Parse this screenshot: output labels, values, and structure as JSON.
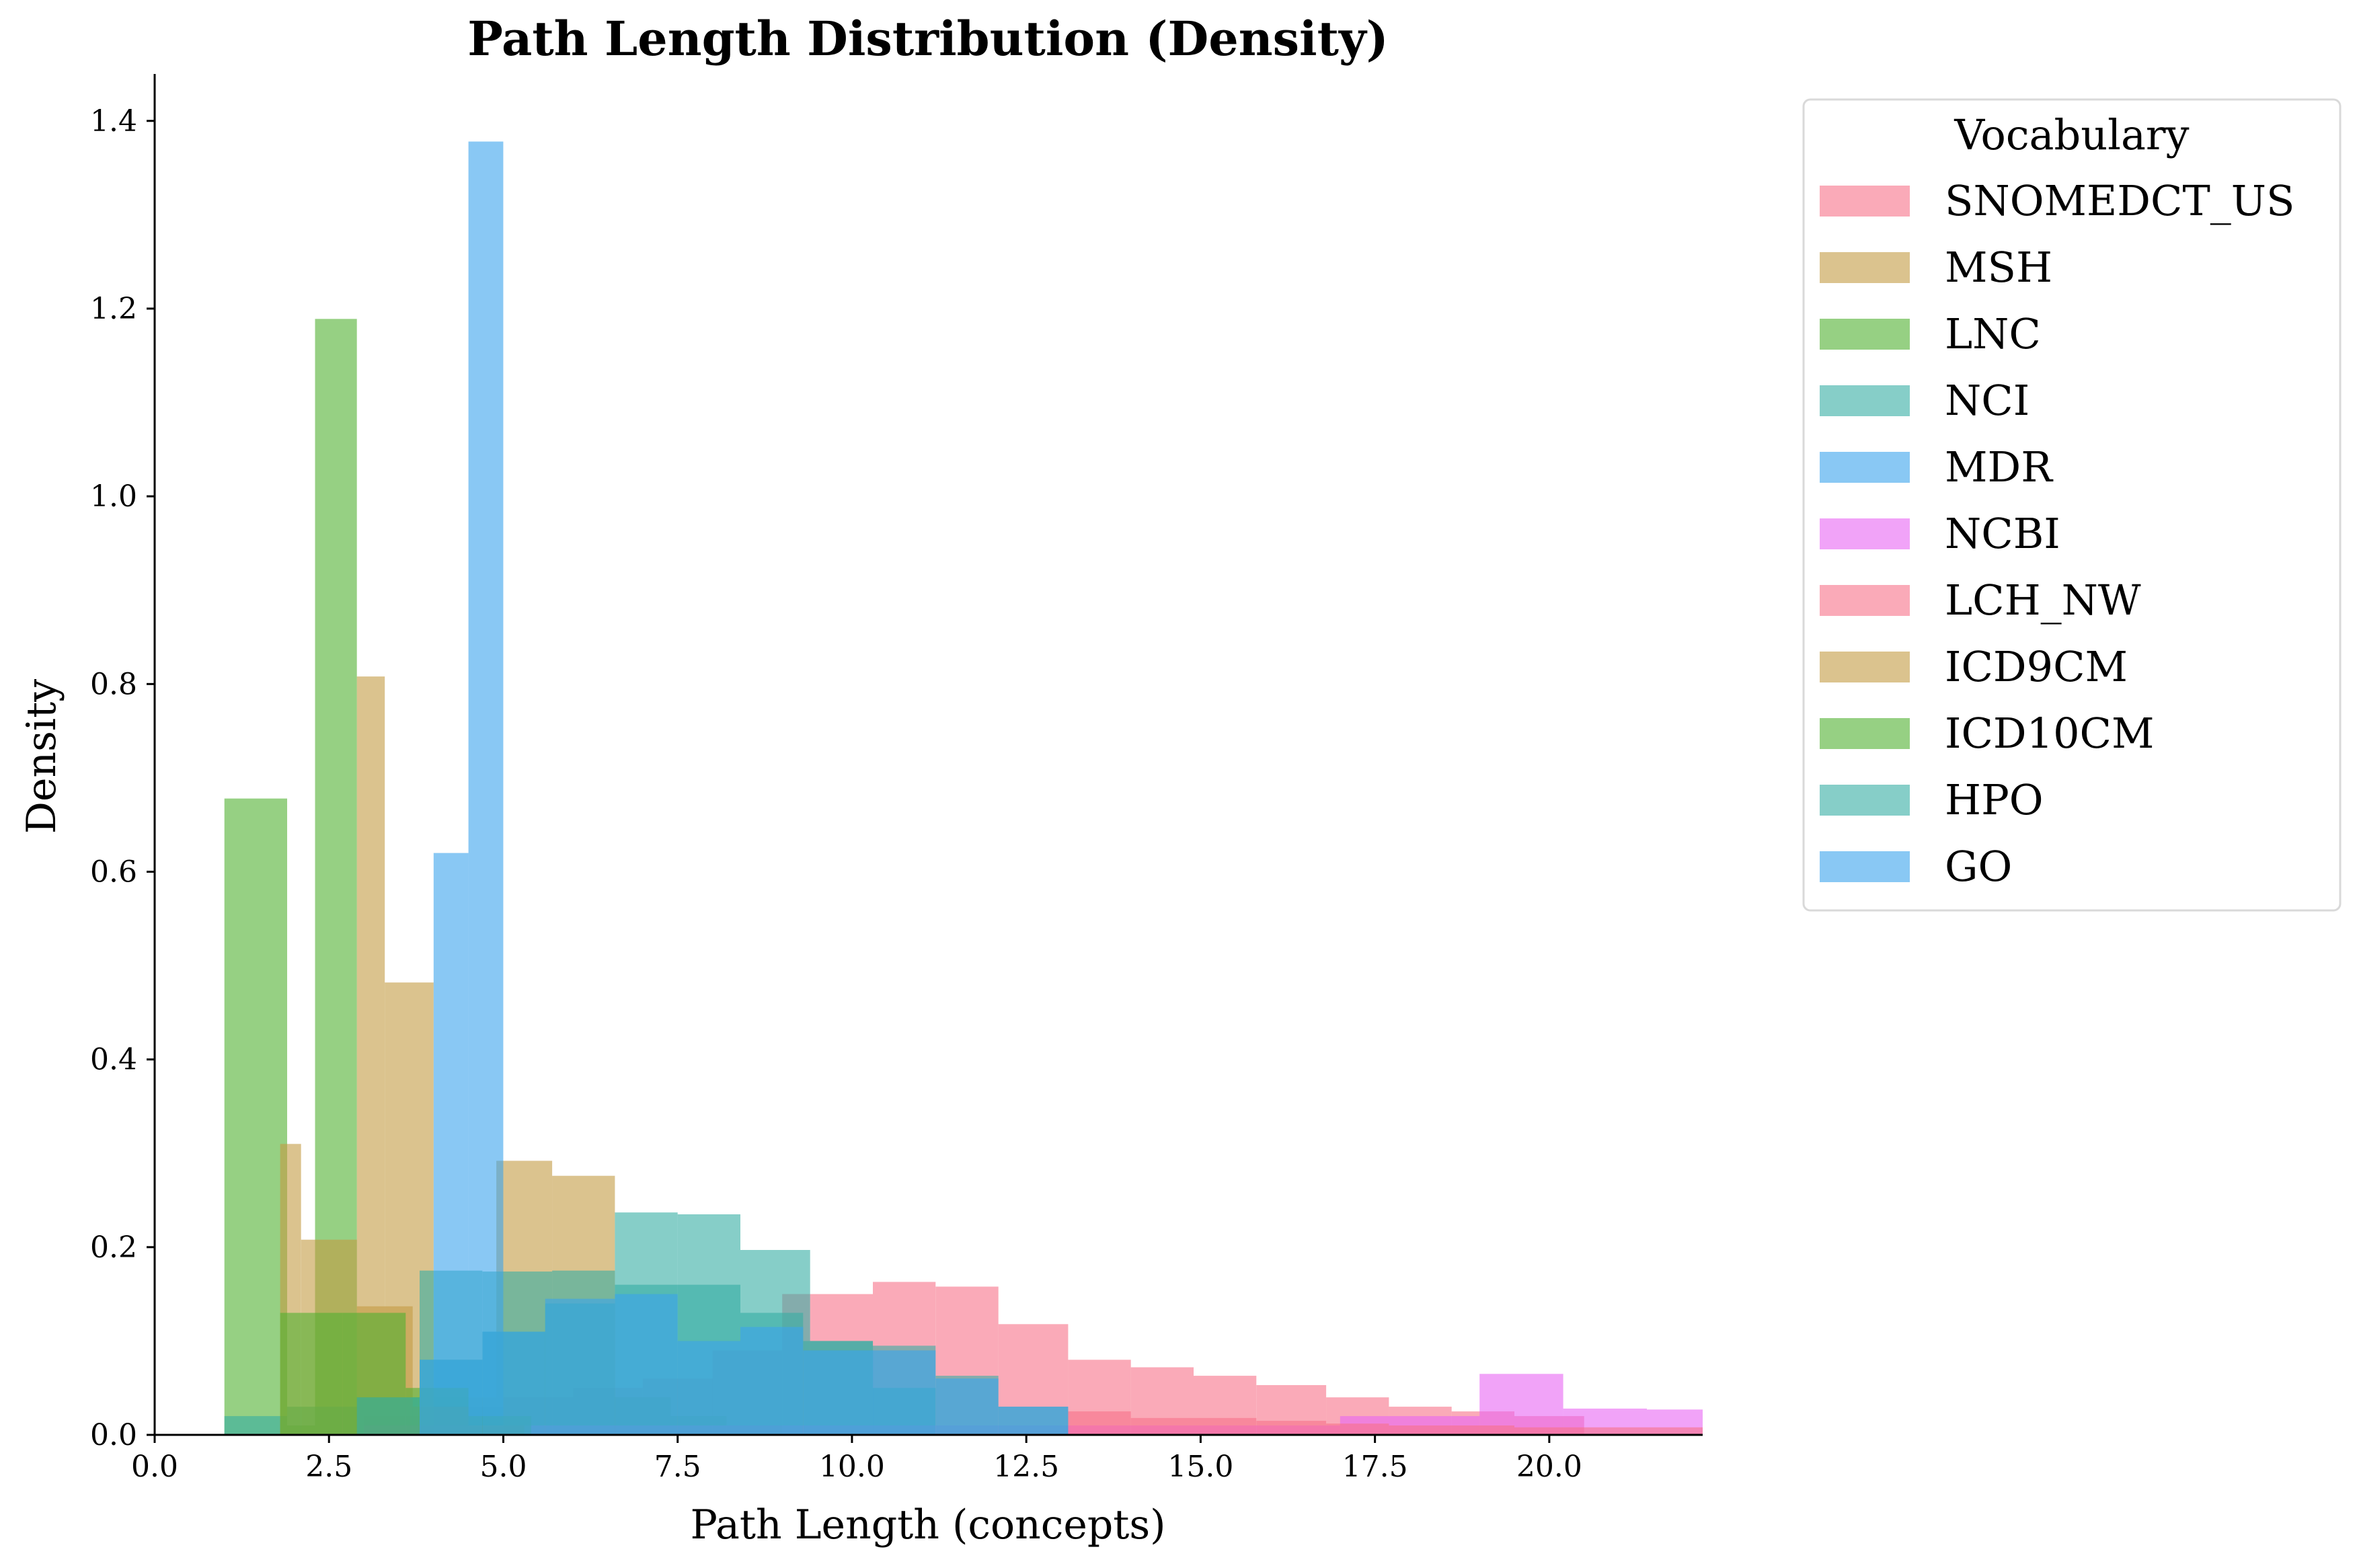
{
  "chart_data": {
    "type": "histogram",
    "title": "Path Length Distribution (Density)",
    "xlabel": "Path Length (concepts)",
    "ylabel": "Density",
    "xlim": [
      0,
      22.2
    ],
    "ylim": [
      0,
      1.45
    ],
    "xticks": [
      0,
      2.5,
      5,
      7.5,
      10,
      12.5,
      15,
      17.5,
      20
    ],
    "xtick_labels": [
      "0.0",
      "2.5",
      "5.0",
      "7.5",
      "10.0",
      "12.5",
      "15.0",
      "17.5",
      "20.0"
    ],
    "yticks": [
      0,
      0.2,
      0.4,
      0.6,
      0.8,
      1.0,
      1.2,
      1.4
    ],
    "ytick_labels": [
      "0.0",
      "0.2",
      "0.4",
      "0.6",
      "0.8",
      "1.0",
      "1.2",
      "1.4"
    ],
    "legend_title": "Vocabulary",
    "legend_position": "outside top-right",
    "series": [
      {
        "name": "SNOMEDCT_US",
        "color": "#f77189",
        "bins": [
          [
            3.0,
            4.0,
            0.02
          ],
          [
            4.0,
            5.0,
            0.03
          ],
          [
            5.0,
            6.0,
            0.04
          ],
          [
            6.0,
            7.0,
            0.05
          ],
          [
            7.0,
            8.0,
            0.06
          ],
          [
            8.0,
            9.0,
            0.09
          ],
          [
            9.0,
            9.4,
            0.15
          ],
          [
            9.4,
            10.3,
            0.15
          ],
          [
            10.3,
            11.2,
            0.163
          ],
          [
            11.2,
            12.1,
            0.158
          ],
          [
            12.1,
            13.1,
            0.118
          ],
          [
            13.1,
            14.0,
            0.08
          ],
          [
            14.0,
            14.9,
            0.072
          ],
          [
            14.9,
            15.8,
            0.063
          ],
          [
            15.8,
            16.8,
            0.053
          ],
          [
            16.8,
            17.7,
            0.04
          ],
          [
            17.7,
            18.6,
            0.03
          ],
          [
            18.6,
            19.5,
            0.025
          ],
          [
            19.5,
            20.5,
            0.02
          ]
        ]
      },
      {
        "name": "MSH",
        "color": "#c39b43",
        "bins": [
          [
            2.9,
            3.3,
            0.808
          ],
          [
            3.3,
            4.0,
            0.482
          ],
          [
            4.0,
            4.9,
            0.04
          ],
          [
            4.9,
            5.7,
            0.292
          ],
          [
            5.7,
            6.6,
            0.276
          ],
          [
            6.6,
            7.4,
            0.04
          ],
          [
            7.4,
            8.2,
            0.02
          ],
          [
            8.2,
            9.0,
            0.01
          ]
        ]
      },
      {
        "name": "LNC",
        "color": "#50b131",
        "bins": [
          [
            1.0,
            1.9,
            0.678
          ],
          [
            1.9,
            2.3,
            0.01
          ],
          [
            2.3,
            2.9,
            1.189
          ]
        ]
      },
      {
        "name": "NCI",
        "color": "#36ada4",
        "bins": [
          [
            1.0,
            1.9,
            0.02
          ],
          [
            1.9,
            2.9,
            0.03
          ],
          [
            2.9,
            3.8,
            0.04
          ],
          [
            3.8,
            4.7,
            0.175
          ],
          [
            4.7,
            5.7,
            0.174
          ],
          [
            5.7,
            6.6,
            0.175
          ],
          [
            6.6,
            7.5,
            0.237
          ],
          [
            7.5,
            8.4,
            0.235
          ],
          [
            8.4,
            9.4,
            0.197
          ],
          [
            9.4,
            10.3,
            0.1
          ],
          [
            10.3,
            11.2,
            0.05
          ]
        ]
      },
      {
        "name": "MDR",
        "color": "#3ba3ec",
        "bins": [
          [
            4.0,
            4.5,
            0.62
          ],
          [
            4.5,
            5.0,
            1.378
          ]
        ]
      },
      {
        "name": "NCBI",
        "color": "#e866f4",
        "bins": [
          [
            3.0,
            5.0,
            0.01
          ],
          [
            5.0,
            8.0,
            0.01
          ],
          [
            8.0,
            11.0,
            0.01
          ],
          [
            11.0,
            14.0,
            0.01
          ],
          [
            14.0,
            17.0,
            0.01
          ],
          [
            17.0,
            19.0,
            0.02
          ],
          [
            19.0,
            20.2,
            0.065
          ],
          [
            20.2,
            21.4,
            0.028
          ],
          [
            21.4,
            22.2,
            0.027
          ]
        ]
      },
      {
        "name": "LCH_NW",
        "color": "#f77189",
        "bins": [
          [
            13.1,
            14.0,
            0.025
          ],
          [
            14.0,
            15.8,
            0.018
          ],
          [
            15.8,
            16.8,
            0.015
          ],
          [
            16.8,
            17.7,
            0.012
          ],
          [
            17.7,
            19.5,
            0.01
          ],
          [
            19.5,
            22.2,
            0.008
          ]
        ]
      },
      {
        "name": "ICD9CM",
        "color": "#c39b43",
        "bins": [
          [
            1.8,
            2.1,
            0.31
          ],
          [
            2.1,
            2.9,
            0.208
          ],
          [
            2.9,
            3.7,
            0.137
          ],
          [
            3.7,
            4.5,
            0.03
          ],
          [
            4.5,
            5.3,
            0.01
          ]
        ]
      },
      {
        "name": "ICD10CM",
        "color": "#50b131",
        "bins": [
          [
            1.8,
            2.7,
            0.13
          ],
          [
            2.7,
            3.6,
            0.13
          ],
          [
            3.6,
            4.5,
            0.05
          ],
          [
            4.5,
            5.4,
            0.02
          ]
        ]
      },
      {
        "name": "HPO",
        "color": "#36ada4",
        "bins": [
          [
            2.9,
            3.8,
            0.04
          ],
          [
            3.8,
            4.7,
            0.08
          ],
          [
            4.7,
            5.6,
            0.11
          ],
          [
            5.6,
            6.6,
            0.14
          ],
          [
            6.6,
            7.5,
            0.16
          ],
          [
            7.5,
            8.4,
            0.16
          ],
          [
            8.4,
            9.3,
            0.13
          ],
          [
            9.3,
            10.3,
            0.1
          ],
          [
            10.3,
            11.2,
            0.095
          ],
          [
            11.2,
            12.1,
            0.063
          ],
          [
            12.1,
            13.1,
            0.03
          ]
        ]
      },
      {
        "name": "GO",
        "color": "#3ba3ec",
        "bins": [
          [
            3.8,
            4.7,
            0.08
          ],
          [
            4.7,
            5.6,
            0.11
          ],
          [
            5.6,
            6.6,
            0.145
          ],
          [
            6.6,
            7.5,
            0.15
          ],
          [
            7.5,
            8.4,
            0.1
          ],
          [
            8.4,
            9.3,
            0.115
          ],
          [
            9.3,
            10.3,
            0.09
          ],
          [
            10.3,
            11.2,
            0.09
          ],
          [
            11.2,
            12.1,
            0.06
          ],
          [
            12.1,
            13.1,
            0.03
          ]
        ]
      }
    ]
  }
}
